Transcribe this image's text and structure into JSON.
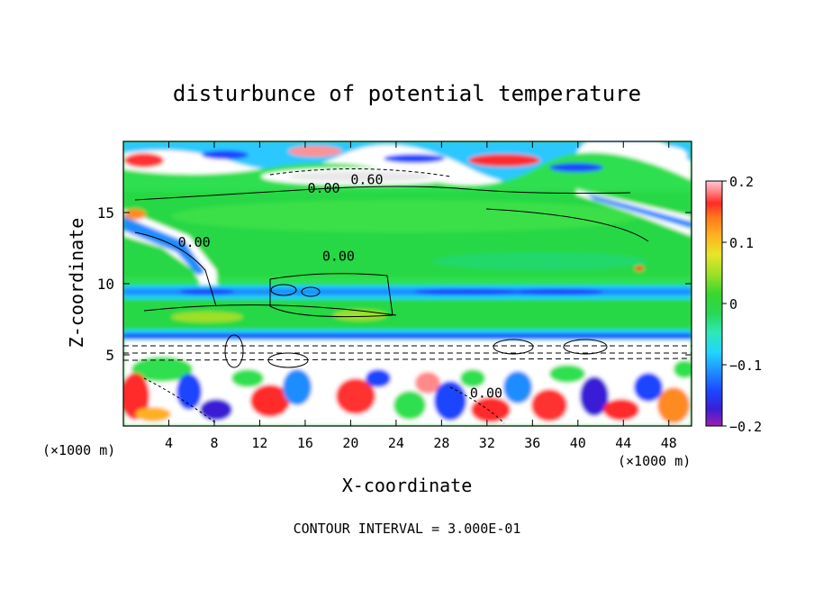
{
  "chart_data": {
    "type": "heatmap",
    "title": "disturbunce of potential temperature",
    "xlabel": "X-coordinate",
    "ylabel": "Z-coordinate",
    "x_unit": "(×1000 m)",
    "z_unit": "(×1000 m)",
    "xlim": [
      0,
      50
    ],
    "ylim": [
      0,
      20
    ],
    "x_ticks": [
      4,
      8,
      12,
      16,
      20,
      24,
      28,
      32,
      36,
      40,
      44,
      48
    ],
    "y_ticks": [
      5,
      10,
      15
    ],
    "colorbar": {
      "range": [
        -0.2,
        0.2
      ],
      "tick_values": [
        0.2,
        0.1,
        0,
        -0.1,
        -0.2
      ],
      "tick_labels": [
        "0.2",
        "0.1",
        "0",
        "−0.1",
        "−0.2"
      ],
      "colors": [
        "#9a1fb0",
        "#3a1fd6",
        "#1d44ff",
        "#1f8cff",
        "#22d4ff",
        "#2ee8b8",
        "#28d855",
        "#3ad62e",
        "#9ee028",
        "#e8e52a",
        "#ffb020",
        "#ff7a1a",
        "#ff2a2a",
        "#ff8a8a",
        "#ffc8d8"
      ]
    },
    "contour_labels": [
      {
        "text": "0.00",
        "x": 16.2,
        "z": 16.4
      },
      {
        "text": "0.60",
        "x": 20.0,
        "z": 17.0
      },
      {
        "text": "0.00",
        "x": 4.8,
        "z": 12.6
      },
      {
        "text": "0.00",
        "x": 17.5,
        "z": 11.6
      },
      {
        "text": "0.00",
        "x": 30.5,
        "z": 2.0
      }
    ],
    "contour_interval_text": "CONTOUR INTERVAL = 3.000E-01"
  }
}
